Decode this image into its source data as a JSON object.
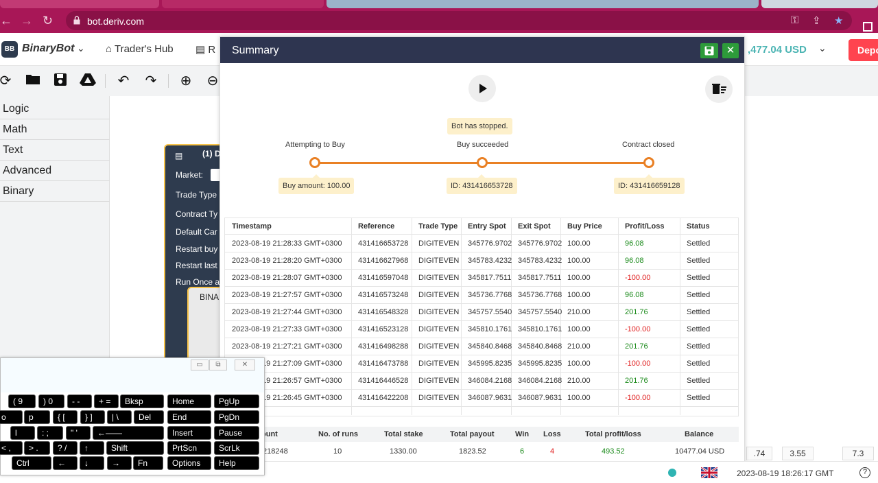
{
  "browser": {
    "url": "bot.deriv.com"
  },
  "header": {
    "logo_badge": "BB",
    "logo_text": "BinaryBot",
    "traders_hub": "Trader's Hub",
    "reports_partial": "R",
    "balance_partial": ",477.04 USD",
    "deposit_partial": "Depo"
  },
  "blocks_menu": [
    "Logic",
    "Math",
    "Text",
    "Advanced",
    "Binary"
  ],
  "trade_block": {
    "title": "(1) D",
    "labels": [
      "Market:",
      "Trade Type",
      "Contract Ty",
      "Default Car",
      "Restart buy",
      "Restart last",
      "Run Once a"
    ],
    "inner": "BINA"
  },
  "summary": {
    "title": "Summary",
    "status_tag": "Bot has stopped.",
    "steps": [
      {
        "label": "Attempting to Buy",
        "tag": "Buy amount: 100.00"
      },
      {
        "label": "Buy succeeded",
        "tag": "ID: 431416653728"
      },
      {
        "label": "Contract closed",
        "tag": "ID: 431416659128"
      }
    ],
    "columns": [
      "Timestamp",
      "Reference",
      "Trade Type",
      "Entry Spot",
      "Exit Spot",
      "Buy Price",
      "Profit/Loss",
      "Status"
    ],
    "rows": [
      [
        "2023-08-19 21:28:33 GMT+0300",
        "431416653728",
        "DIGITEVEN",
        "345776.9702",
        "345776.9702",
        "100.00",
        "96.08",
        "Settled"
      ],
      [
        "2023-08-19 21:28:20 GMT+0300",
        "431416627968",
        "DIGITEVEN",
        "345783.4232",
        "345783.4232",
        "100.00",
        "96.08",
        "Settled"
      ],
      [
        "2023-08-19 21:28:07 GMT+0300",
        "431416597048",
        "DIGITEVEN",
        "345817.7511",
        "345817.7511",
        "100.00",
        "-100.00",
        "Settled"
      ],
      [
        "2023-08-19 21:27:57 GMT+0300",
        "431416573248",
        "DIGITEVEN",
        "345736.7768",
        "345736.7768",
        "100.00",
        "96.08",
        "Settled"
      ],
      [
        "2023-08-19 21:27:44 GMT+0300",
        "431416548328",
        "DIGITEVEN",
        "345757.5540",
        "345757.5540",
        "210.00",
        "201.76",
        "Settled"
      ],
      [
        "2023-08-19 21:27:33 GMT+0300",
        "431416523128",
        "DIGITEVEN",
        "345810.1761",
        "345810.1761",
        "100.00",
        "-100.00",
        "Settled"
      ],
      [
        "2023-08-19 21:27:21 GMT+0300",
        "431416498288",
        "DIGITEVEN",
        "345840.8468",
        "345840.8468",
        "210.00",
        "201.76",
        "Settled"
      ],
      [
        "2023-08-19 21:27:09 GMT+0300",
        "431416473788",
        "DIGITEVEN",
        "345995.8235",
        "345995.8235",
        "100.00",
        "-100.00",
        "Settled"
      ],
      [
        "2023-08-19 21:26:57 GMT+0300",
        "431416446528",
        "DIGITEVEN",
        "346084.2168",
        "346084.2168",
        "210.00",
        "201.76",
        "Settled"
      ],
      [
        "2023-08-19 21:26:45 GMT+0300",
        "431416422208",
        "DIGITEVEN",
        "346087.9631",
        "346087.9631",
        "100.00",
        "-100.00",
        "Settled"
      ]
    ],
    "stats_headers": [
      "ount",
      "No. of runs",
      "Total stake",
      "Total payout",
      "Win",
      "Loss",
      "Total profit/loss",
      "Balance"
    ],
    "stats_values": [
      "218248",
      "10",
      "1330.00",
      "1823.52",
      "6",
      "4",
      "493.52",
      "10477.04 USD"
    ]
  },
  "chips": [
    ".74",
    "3.55",
    "7.3"
  ],
  "footer": {
    "time": "2023-08-19 18:26:17 GMT",
    "help": "?"
  },
  "osk": {
    "rows": [
      [
        "(  9",
        ")  0",
        "-  -",
        "+  =",
        "Bksp",
        "Home",
        "PgUp"
      ],
      [
        "o",
        "p",
        "{  [",
        "}  ]",
        "|  \\",
        "Del",
        "End",
        "PgDn"
      ],
      [
        "l",
        ":  ;",
        "\"  '",
        "←——",
        "Insert",
        "Pause"
      ],
      [
        "<  ,",
        ">  .",
        "?  /",
        "↑",
        "Shift",
        "PrtScn",
        "ScrLk"
      ],
      [
        "Ctrl",
        "←",
        "↓",
        "→",
        "Fn",
        "Options",
        "Help"
      ]
    ]
  },
  "colors": {
    "profit": "#1a8a1a",
    "loss": "#e01b1b",
    "accent": "#e98024",
    "brand": "#a81757"
  }
}
